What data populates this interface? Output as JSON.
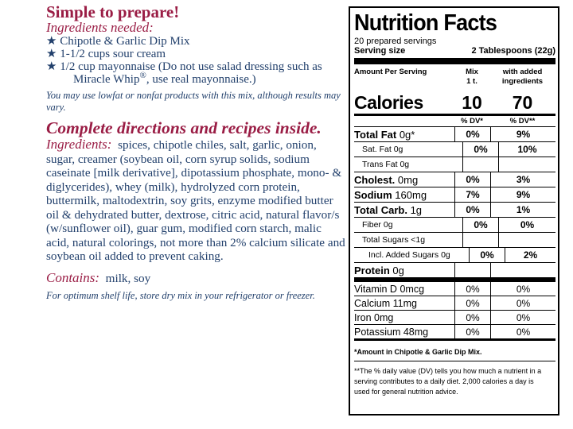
{
  "left": {
    "heading": "Simple to prepare!",
    "needed_label": "Ingredients needed:",
    "needed_items": [
      {
        "text": "Chipotle & Garlic Dip Mix"
      },
      {
        "text": "1-1/2 cups sour cream"
      },
      {
        "text": "1/2 cup mayonnaise (Do not use salad dressing such as Miracle Whip",
        "sup": "®",
        "after": ", use real mayonnaise.)"
      }
    ],
    "lowfat_note": "You may use lowfat or nonfat products with this mix, although results may vary.",
    "directions": "Complete directions and recipes inside.",
    "ingredients_label": "Ingredients:",
    "ingredients_text": "spices, chipotle chiles, salt, garlic, onion, sugar, creamer (soybean oil, corn syrup solids, sodium caseinate [milk derivative], dipotassium phosphate, mono- & diglycerides), whey (milk), hydrolyzed corn protein, buttermilk, maltodextrin, soy grits, enzyme modified butter oil & dehydrated butter, dextrose, citric acid, natural flavor/s (w/sunflower oil), guar gum, modified corn starch, malic acid, natural colorings, not more than 2% calcium silicate and soybean oil added to prevent caking.",
    "contains_label": "Contains:",
    "contains_text": "milk, soy",
    "storage_note": "For optimum shelf life, store dry mix in your refrigerator or freezer."
  },
  "nutrition": {
    "title": "Nutrition Facts",
    "servings": "20 prepared servings",
    "serving_size_label": "Serving size",
    "serving_size": "2 Tablespoons (22g)",
    "amount_header": "Amount Per Serving",
    "col_mix": [
      "Mix",
      "1 t."
    ],
    "col_added": [
      "with added",
      "ingredients"
    ],
    "calories_label": "Calories",
    "calories_mix": "10",
    "calories_added": "70",
    "dv_mix": "% DV*",
    "dv_added": "% DV**",
    "nutrients": [
      {
        "name": "Total Fat",
        "amount": "0g*",
        "mix": "0%",
        "added": "9%"
      },
      {
        "name": "Sat. Fat",
        "amount": "0g",
        "mix": "0%",
        "added": "10%"
      },
      {
        "name": "Trans Fat",
        "amount": "0g"
      },
      {
        "name": "Cholest.",
        "amount": "0mg",
        "mix": "0%",
        "added": "3%"
      },
      {
        "name": "Sodium",
        "amount": "160mg",
        "mix": "7%",
        "added": "9%"
      },
      {
        "name": "Total Carb.",
        "amount": "1g",
        "mix": "0%",
        "added": "1%"
      },
      {
        "name": "Fiber",
        "amount": "0g",
        "mix": "0%",
        "added": "0%"
      },
      {
        "name": "Total Sugars",
        "amount": "<1g"
      },
      {
        "name": "Incl. Added Sugars",
        "amount": "0g",
        "mix": "0%",
        "added": "2%"
      },
      {
        "name": "Protein",
        "amount": "0g"
      }
    ],
    "vitamins": [
      {
        "name": "Vitamin D",
        "amount": "0mcg",
        "mix": "0%",
        "added": "0%"
      },
      {
        "name": "Calcium",
        "amount": "11mg",
        "mix": "0%",
        "added": "0%"
      },
      {
        "name": "Iron",
        "amount": "0mg",
        "mix": "0%",
        "added": "0%"
      },
      {
        "name": "Potassium",
        "amount": "48mg",
        "mix": "0%",
        "added": "0%"
      }
    ],
    "footnote_amount": "*Amount in",
    "footnote_product": "Chipotle & Garlic Dip Mix.",
    "footnote_dv": "**The % daily value (DV) tells you how much a nutrient in a serving contributes to a daily diet. 2,000 calories a day is used for general nutrition advice."
  }
}
